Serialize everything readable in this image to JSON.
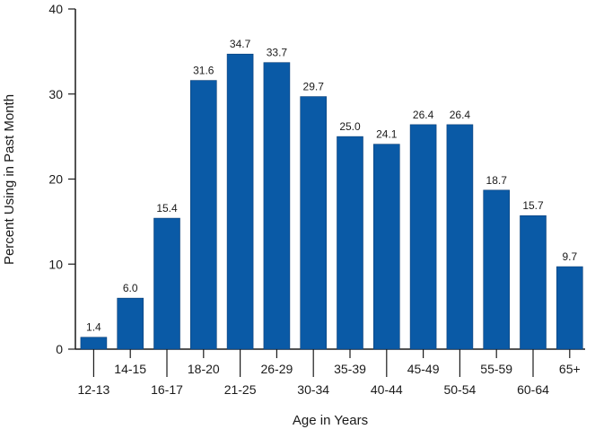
{
  "chart_data": {
    "type": "bar",
    "title": "",
    "xlabel": "Age in Years",
    "ylabel": "Percent Using in Past Month",
    "ylim": [
      0,
      40
    ],
    "yticks": [
      0,
      10,
      20,
      30,
      40
    ],
    "grid": false,
    "bar_color": "#0a5aa6",
    "categories": [
      "12-13",
      "14-15",
      "16-17",
      "18-20",
      "21-25",
      "26-29",
      "30-34",
      "35-39",
      "40-44",
      "45-49",
      "50-54",
      "55-59",
      "60-64",
      "65+"
    ],
    "values": [
      1.4,
      6.0,
      15.4,
      31.6,
      34.7,
      33.7,
      29.7,
      25.0,
      24.1,
      26.4,
      26.4,
      18.7,
      15.7,
      9.7
    ],
    "value_labels": [
      "1.4",
      "6.0",
      "15.4",
      "31.6",
      "34.7",
      "33.7",
      "29.7",
      "25.0",
      "24.1",
      "26.4",
      "26.4",
      "18.7",
      "15.7",
      "9.7"
    ]
  }
}
